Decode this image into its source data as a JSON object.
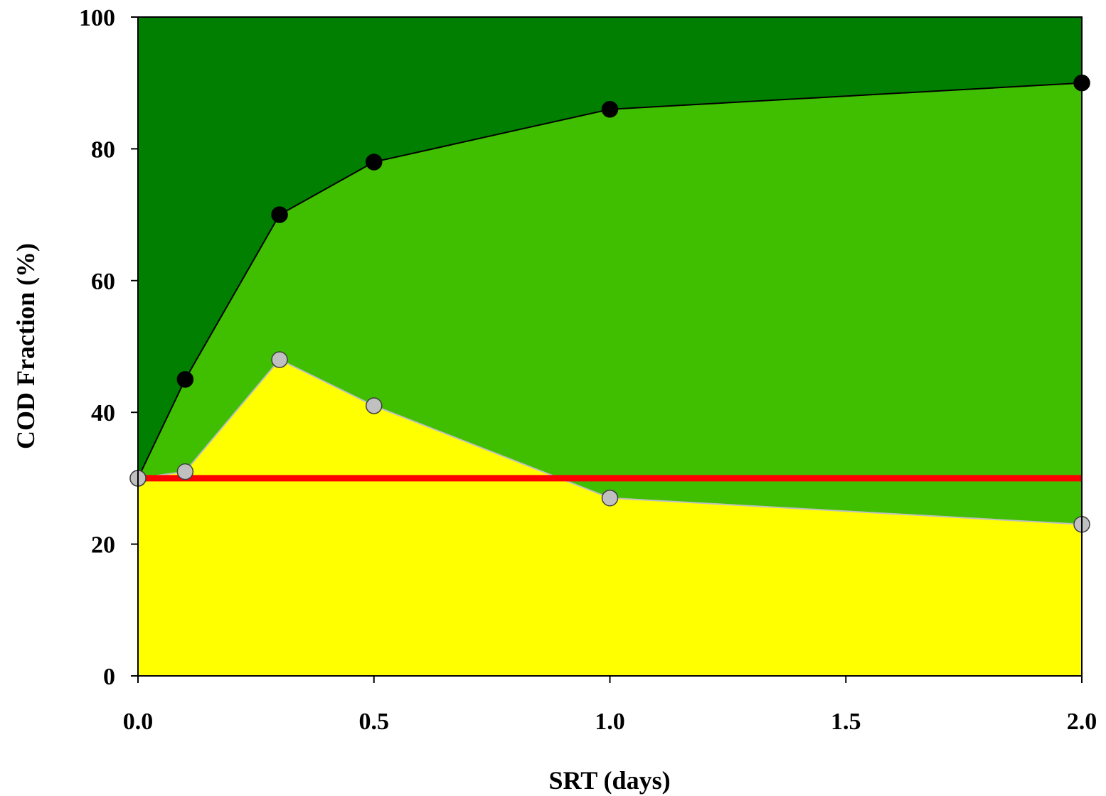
{
  "chart_data": {
    "type": "area",
    "title": "",
    "xlabel": "SRT (days)",
    "ylabel": "COD Fraction (%)",
    "xlim": [
      0,
      2
    ],
    "ylim": [
      0,
      100
    ],
    "xticks": [
      0,
      0.5,
      1,
      1.5,
      2
    ],
    "xtick_labels": [
      "0.0",
      "0.5",
      "1.0",
      "1.5",
      "2.0"
    ],
    "yticks": [
      0,
      20,
      40,
      60,
      80,
      100
    ],
    "ytick_labels": [
      "0",
      "20",
      "40",
      "60",
      "80",
      "100"
    ],
    "grid": false,
    "legend": "none",
    "x": [
      0,
      0.1,
      0.3,
      0.5,
      1.0,
      2.0
    ],
    "series": [
      {
        "values": [
          30,
          31,
          48,
          41,
          27,
          23
        ],
        "fill_color": "#ffff00",
        "line_color": "#c0c0c0",
        "marker": "grey-circle"
      },
      {
        "values": [
          30,
          45,
          70,
          78,
          86,
          90
        ],
        "fill_color": "#40bf00",
        "line_color": "#000000",
        "marker": "black-circle"
      },
      {
        "values": [
          100,
          100,
          100,
          100,
          100,
          100
        ],
        "fill_color": "#007f00"
      }
    ],
    "reference_line": {
      "y": 30,
      "color": "#ff0000"
    }
  }
}
